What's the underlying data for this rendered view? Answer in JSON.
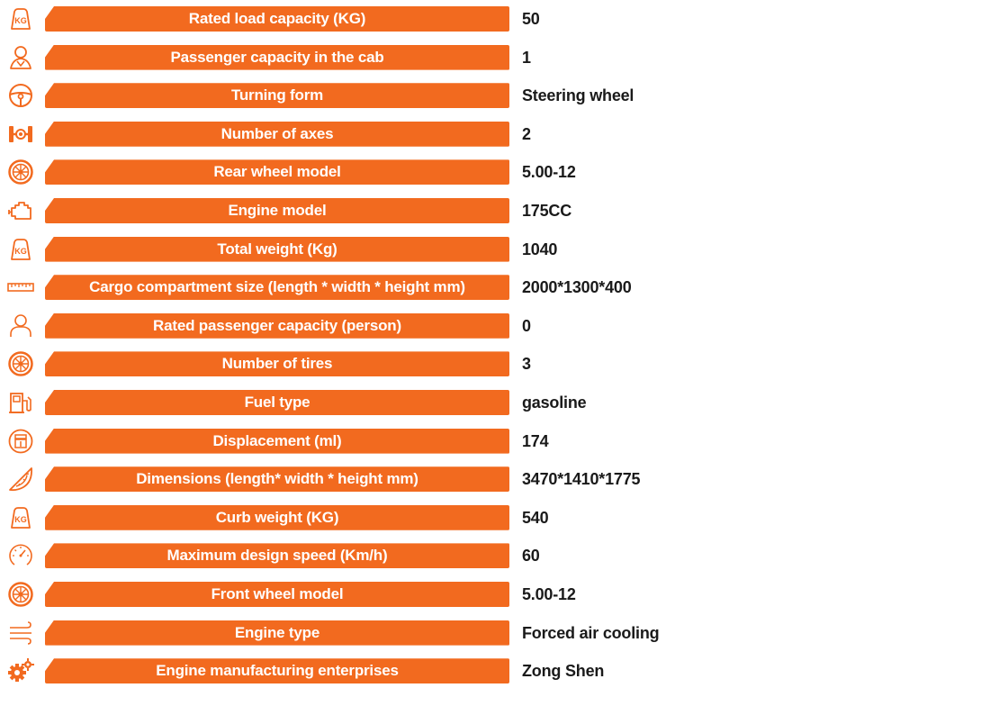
{
  "colors": {
    "accent": "#f26a1f",
    "label_text": "#ffffff",
    "value_text": "#1a1a1a"
  },
  "specs": [
    {
      "icon": "kg-weight-icon",
      "label": "Rated load capacity (KG)",
      "value": "50"
    },
    {
      "icon": "passenger-icon",
      "label": "Passenger capacity in the cab",
      "value": "1"
    },
    {
      "icon": "steering-wheel-icon",
      "label": "Turning form",
      "value": "Steering wheel"
    },
    {
      "icon": "axle-icon",
      "label": "Number of axes",
      "value": "2"
    },
    {
      "icon": "wheel-icon",
      "label": "Rear wheel model",
      "value": "5.00-12"
    },
    {
      "icon": "engine-icon",
      "label": "Engine model",
      "value": "175CC"
    },
    {
      "icon": "kg-weight-icon",
      "label": "Total weight (Kg)",
      "value": "1040"
    },
    {
      "icon": "ruler-icon",
      "label": "Cargo compartment size (length * width * height mm)",
      "value": "2000*1300*400"
    },
    {
      "icon": "person-icon",
      "label": "Rated passenger capacity (person)",
      "value": "0"
    },
    {
      "icon": "wheel-icon",
      "label": "Number of tires",
      "value": "3"
    },
    {
      "icon": "fuel-pump-icon",
      "label": "Fuel type",
      "value": "gasoline"
    },
    {
      "icon": "displacement-icon",
      "label": "Displacement (ml)",
      "value": "174"
    },
    {
      "icon": "protractor-icon",
      "label": "Dimensions (length* width * height mm)",
      "value": "3470*1410*1775"
    },
    {
      "icon": "kg-weight-icon",
      "label": "Curb weight (KG)",
      "value": "540"
    },
    {
      "icon": "speedometer-icon",
      "label": "Maximum design speed (Km/h)",
      "value": "60"
    },
    {
      "icon": "wheel-icon",
      "label": "Front wheel model",
      "value": "5.00-12"
    },
    {
      "icon": "air-cooling-icon",
      "label": "Engine type",
      "value": "Forced air cooling"
    },
    {
      "icon": "gears-icon",
      "label": "Engine manufacturing enterprises",
      "value": "Zong Shen"
    }
  ]
}
